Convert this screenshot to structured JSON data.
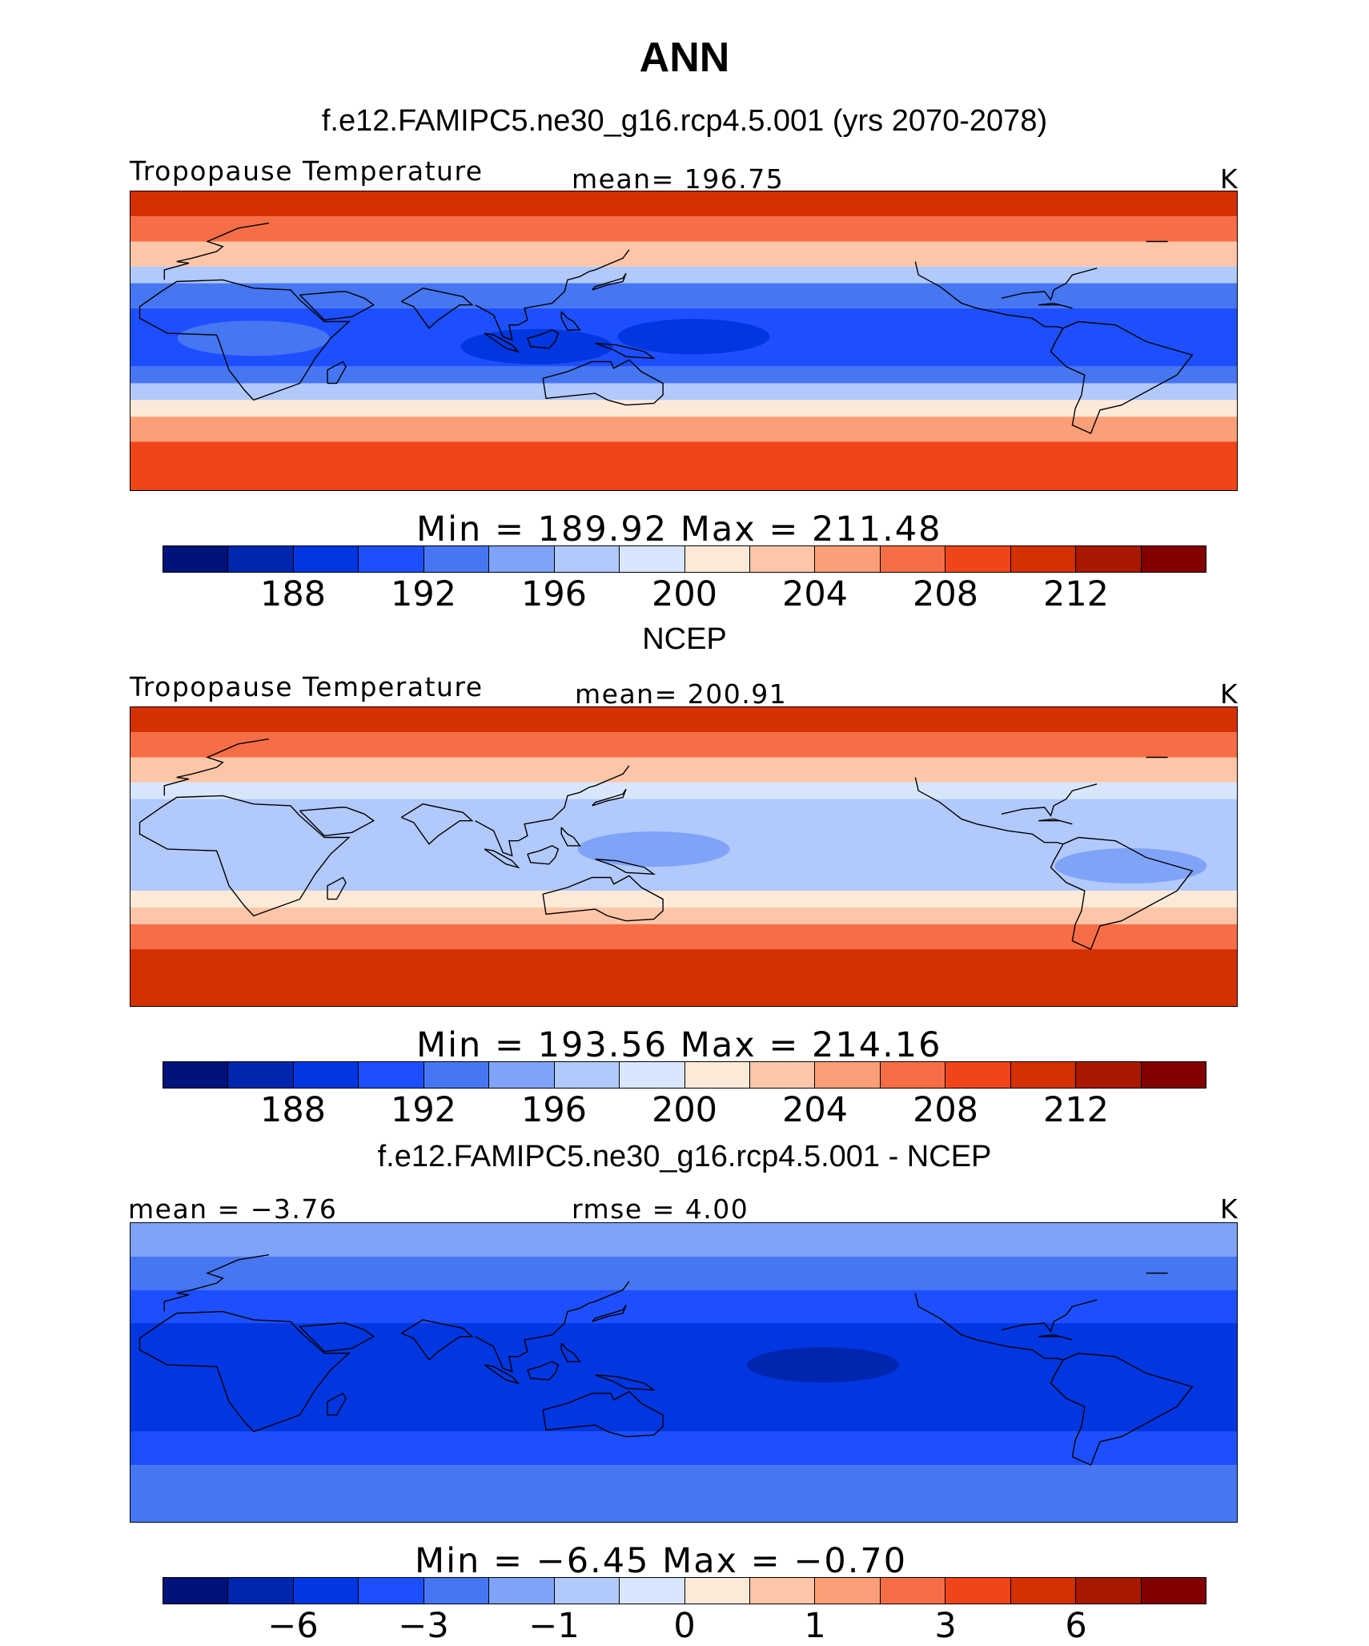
{
  "title": "ANN",
  "colors": [
    "#00137a",
    "#0026b0",
    "#0136e0",
    "#1e4fff",
    "#4676f2",
    "#7fa3f7",
    "#b1c9fb",
    "#d8e6fd",
    "#fde9d8",
    "#fdc6a9",
    "#fb9f78",
    "#f76e46",
    "#f04518",
    "#d43004",
    "#a81900",
    "#820000"
  ],
  "coast_color": "#000000",
  "panels": [
    {
      "title": "f.e12.FAMIPC5.ne30_g16.rcp4.5.001 (yrs 2070-2078)",
      "left_label": "Tropopause Temperature",
      "center_label": "mean= 196.75",
      "units": "K",
      "minmax": "Min = 189.92 Max = 211.48"
    },
    {
      "title": "NCEP",
      "left_label": "Tropopause Temperature",
      "center_label": "mean= 200.91",
      "units": "K",
      "minmax": "Min = 193.56 Max = 214.16"
    },
    {
      "title": "f.e12.FAMIPC5.ne30_g16.rcp4.5.001 - NCEP",
      "left_label": "mean =   −3.76",
      "center_label": "rmse =    4.00",
      "units": "K",
      "minmax": "Min =   −6.45 Max =   −0.70"
    }
  ],
  "chart_data": [
    {
      "type": "heatmap",
      "title": "f.e12.FAMIPC5.ne30_g16.rcp4.5.001 (yrs 2070-2078)",
      "variable": "Tropopause Temperature",
      "units": "K",
      "mean": 196.75,
      "min": 189.92,
      "max": 211.48,
      "colorbar_levels": [
        186,
        188,
        190,
        192,
        194,
        196,
        198,
        200,
        202,
        204,
        206,
        208,
        210,
        212,
        214
      ],
      "colorbar_ticks": [
        "188",
        "192",
        "196",
        "200",
        "204",
        "208",
        "212"
      ],
      "field_bands": [
        {
          "lat_range": [
            75,
            90
          ],
          "level_index": 13
        },
        {
          "lat_range": [
            60,
            75
          ],
          "level_index": 11
        },
        {
          "lat_range": [
            45,
            60
          ],
          "level_index": 9
        },
        {
          "lat_range": [
            35,
            45
          ],
          "level_index": 6
        },
        {
          "lat_range": [
            20,
            35
          ],
          "level_index": 4
        },
        {
          "lat_range": [
            -15,
            20
          ],
          "level_index": 3
        },
        {
          "lat_range": [
            -25,
            -15
          ],
          "level_index": 4
        },
        {
          "lat_range": [
            -35,
            -25
          ],
          "level_index": 6
        },
        {
          "lat_range": [
            -45,
            -35
          ],
          "level_index": 8
        },
        {
          "lat_range": [
            -60,
            -45
          ],
          "level_index": 10
        },
        {
          "lat_range": [
            -90,
            -60
          ],
          "level_index": 12
        }
      ],
      "features": [
        {
          "lon": 163,
          "lat": 3,
          "level_index": 2
        },
        {
          "lon": 20,
          "lat": 2,
          "level_index": 4
        },
        {
          "lon": 112,
          "lat": -3,
          "level_index": 2
        }
      ]
    },
    {
      "type": "heatmap",
      "title": "NCEP",
      "variable": "Tropopause Temperature",
      "units": "K",
      "mean": 200.91,
      "min": 193.56,
      "max": 214.16,
      "colorbar_levels": [
        186,
        188,
        190,
        192,
        194,
        196,
        198,
        200,
        202,
        204,
        206,
        208,
        210,
        212,
        214
      ],
      "colorbar_ticks": [
        "188",
        "192",
        "196",
        "200",
        "204",
        "208",
        "212"
      ],
      "field_bands": [
        {
          "lat_range": [
            75,
            90
          ],
          "level_index": 13
        },
        {
          "lat_range": [
            60,
            75
          ],
          "level_index": 11
        },
        {
          "lat_range": [
            45,
            60
          ],
          "level_index": 9
        },
        {
          "lat_range": [
            35,
            45
          ],
          "level_index": 7
        },
        {
          "lat_range": [
            -20,
            35
          ],
          "level_index": 6
        },
        {
          "lat_range": [
            -30,
            -20
          ],
          "level_index": 8
        },
        {
          "lat_range": [
            -40,
            -30
          ],
          "level_index": 9
        },
        {
          "lat_range": [
            -55,
            -40
          ],
          "level_index": 11
        },
        {
          "lat_range": [
            -90,
            -55
          ],
          "level_index": 13
        }
      ],
      "features": [
        {
          "lon": 150,
          "lat": 5,
          "level_index": 5
        },
        {
          "lon": -55,
          "lat": -5,
          "level_index": 5
        }
      ]
    },
    {
      "type": "heatmap",
      "title": "f.e12.FAMIPC5.ne30_g16.rcp4.5.001 - NCEP",
      "units": "K",
      "mean": -3.76,
      "rmse": 4.0,
      "min": -6.45,
      "max": -0.7,
      "colorbar_levels": [
        -8,
        -6,
        -5,
        -4,
        -3,
        -2,
        -1,
        -0.5,
        0,
        0.5,
        1,
        2,
        3,
        4,
        6
      ],
      "colorbar_ticks": [
        "−6",
        "−3",
        "−1",
        "0",
        "1",
        "3",
        "6"
      ],
      "field_bands": [
        {
          "lat_range": [
            70,
            90
          ],
          "level_index": 5
        },
        {
          "lat_range": [
            50,
            70
          ],
          "level_index": 4
        },
        {
          "lat_range": [
            30,
            50
          ],
          "level_index": 3
        },
        {
          "lat_range": [
            -35,
            30
          ],
          "level_index": 2
        },
        {
          "lat_range": [
            -55,
            -35
          ],
          "level_index": 3
        },
        {
          "lat_range": [
            -90,
            -55
          ],
          "level_index": 4
        }
      ],
      "features": [
        {
          "lon": -155,
          "lat": 5,
          "level_index": 1
        },
        {
          "lon": 20,
          "lat": 0,
          "level_index": 2
        }
      ]
    }
  ]
}
